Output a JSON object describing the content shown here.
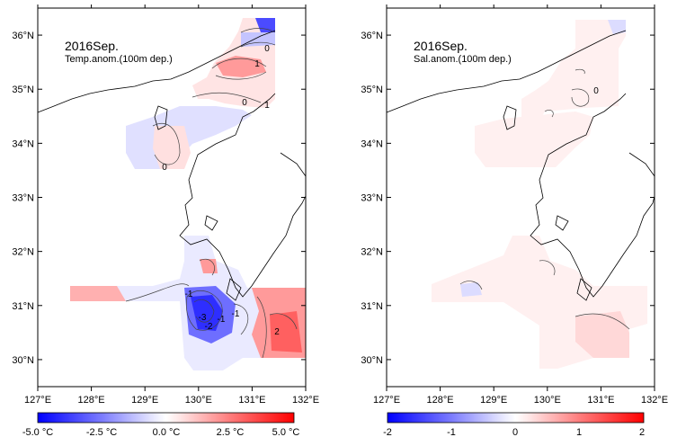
{
  "panels": [
    {
      "id": "temp",
      "title": "2016Sep.",
      "subtitle": "Temp.anom.(100m dep.)",
      "contour_labels": [
        "1",
        "0",
        "1",
        "0",
        "0",
        "-1",
        "-3",
        "-2",
        "-1",
        "-1",
        "2"
      ],
      "colorbar_labels": [
        "-5.0 °C",
        "-2.5 °C",
        "0.0 °C",
        "2.5 °C",
        "5.0 °C"
      ]
    },
    {
      "id": "sal",
      "title": "2016Sep.",
      "subtitle": "Sal.anom.(100m dep.)",
      "contour_labels": [
        "0"
      ],
      "colorbar_labels": [
        "-2",
        "-1",
        "0",
        "1",
        "2"
      ]
    }
  ],
  "axes": {
    "x_ticks": [
      "127°E",
      "128°E",
      "129°E",
      "130°E",
      "131°E",
      "132°E"
    ],
    "y_ticks": [
      "36°N",
      "35°N",
      "34°N",
      "33°N",
      "32°N",
      "31°N",
      "30°N"
    ],
    "x_range": [
      127,
      132
    ],
    "y_range": [
      29.5,
      36.5
    ]
  },
  "colors": {
    "neg_strong": "#1f1fff",
    "neg_mid": "#8c8cff",
    "neg_light": "#d8d8ff",
    "neutral": "#ffffff",
    "pos_light": "#ffd8d8",
    "pos_mid": "#ff8c8c",
    "pos_strong": "#ff1f1f"
  }
}
